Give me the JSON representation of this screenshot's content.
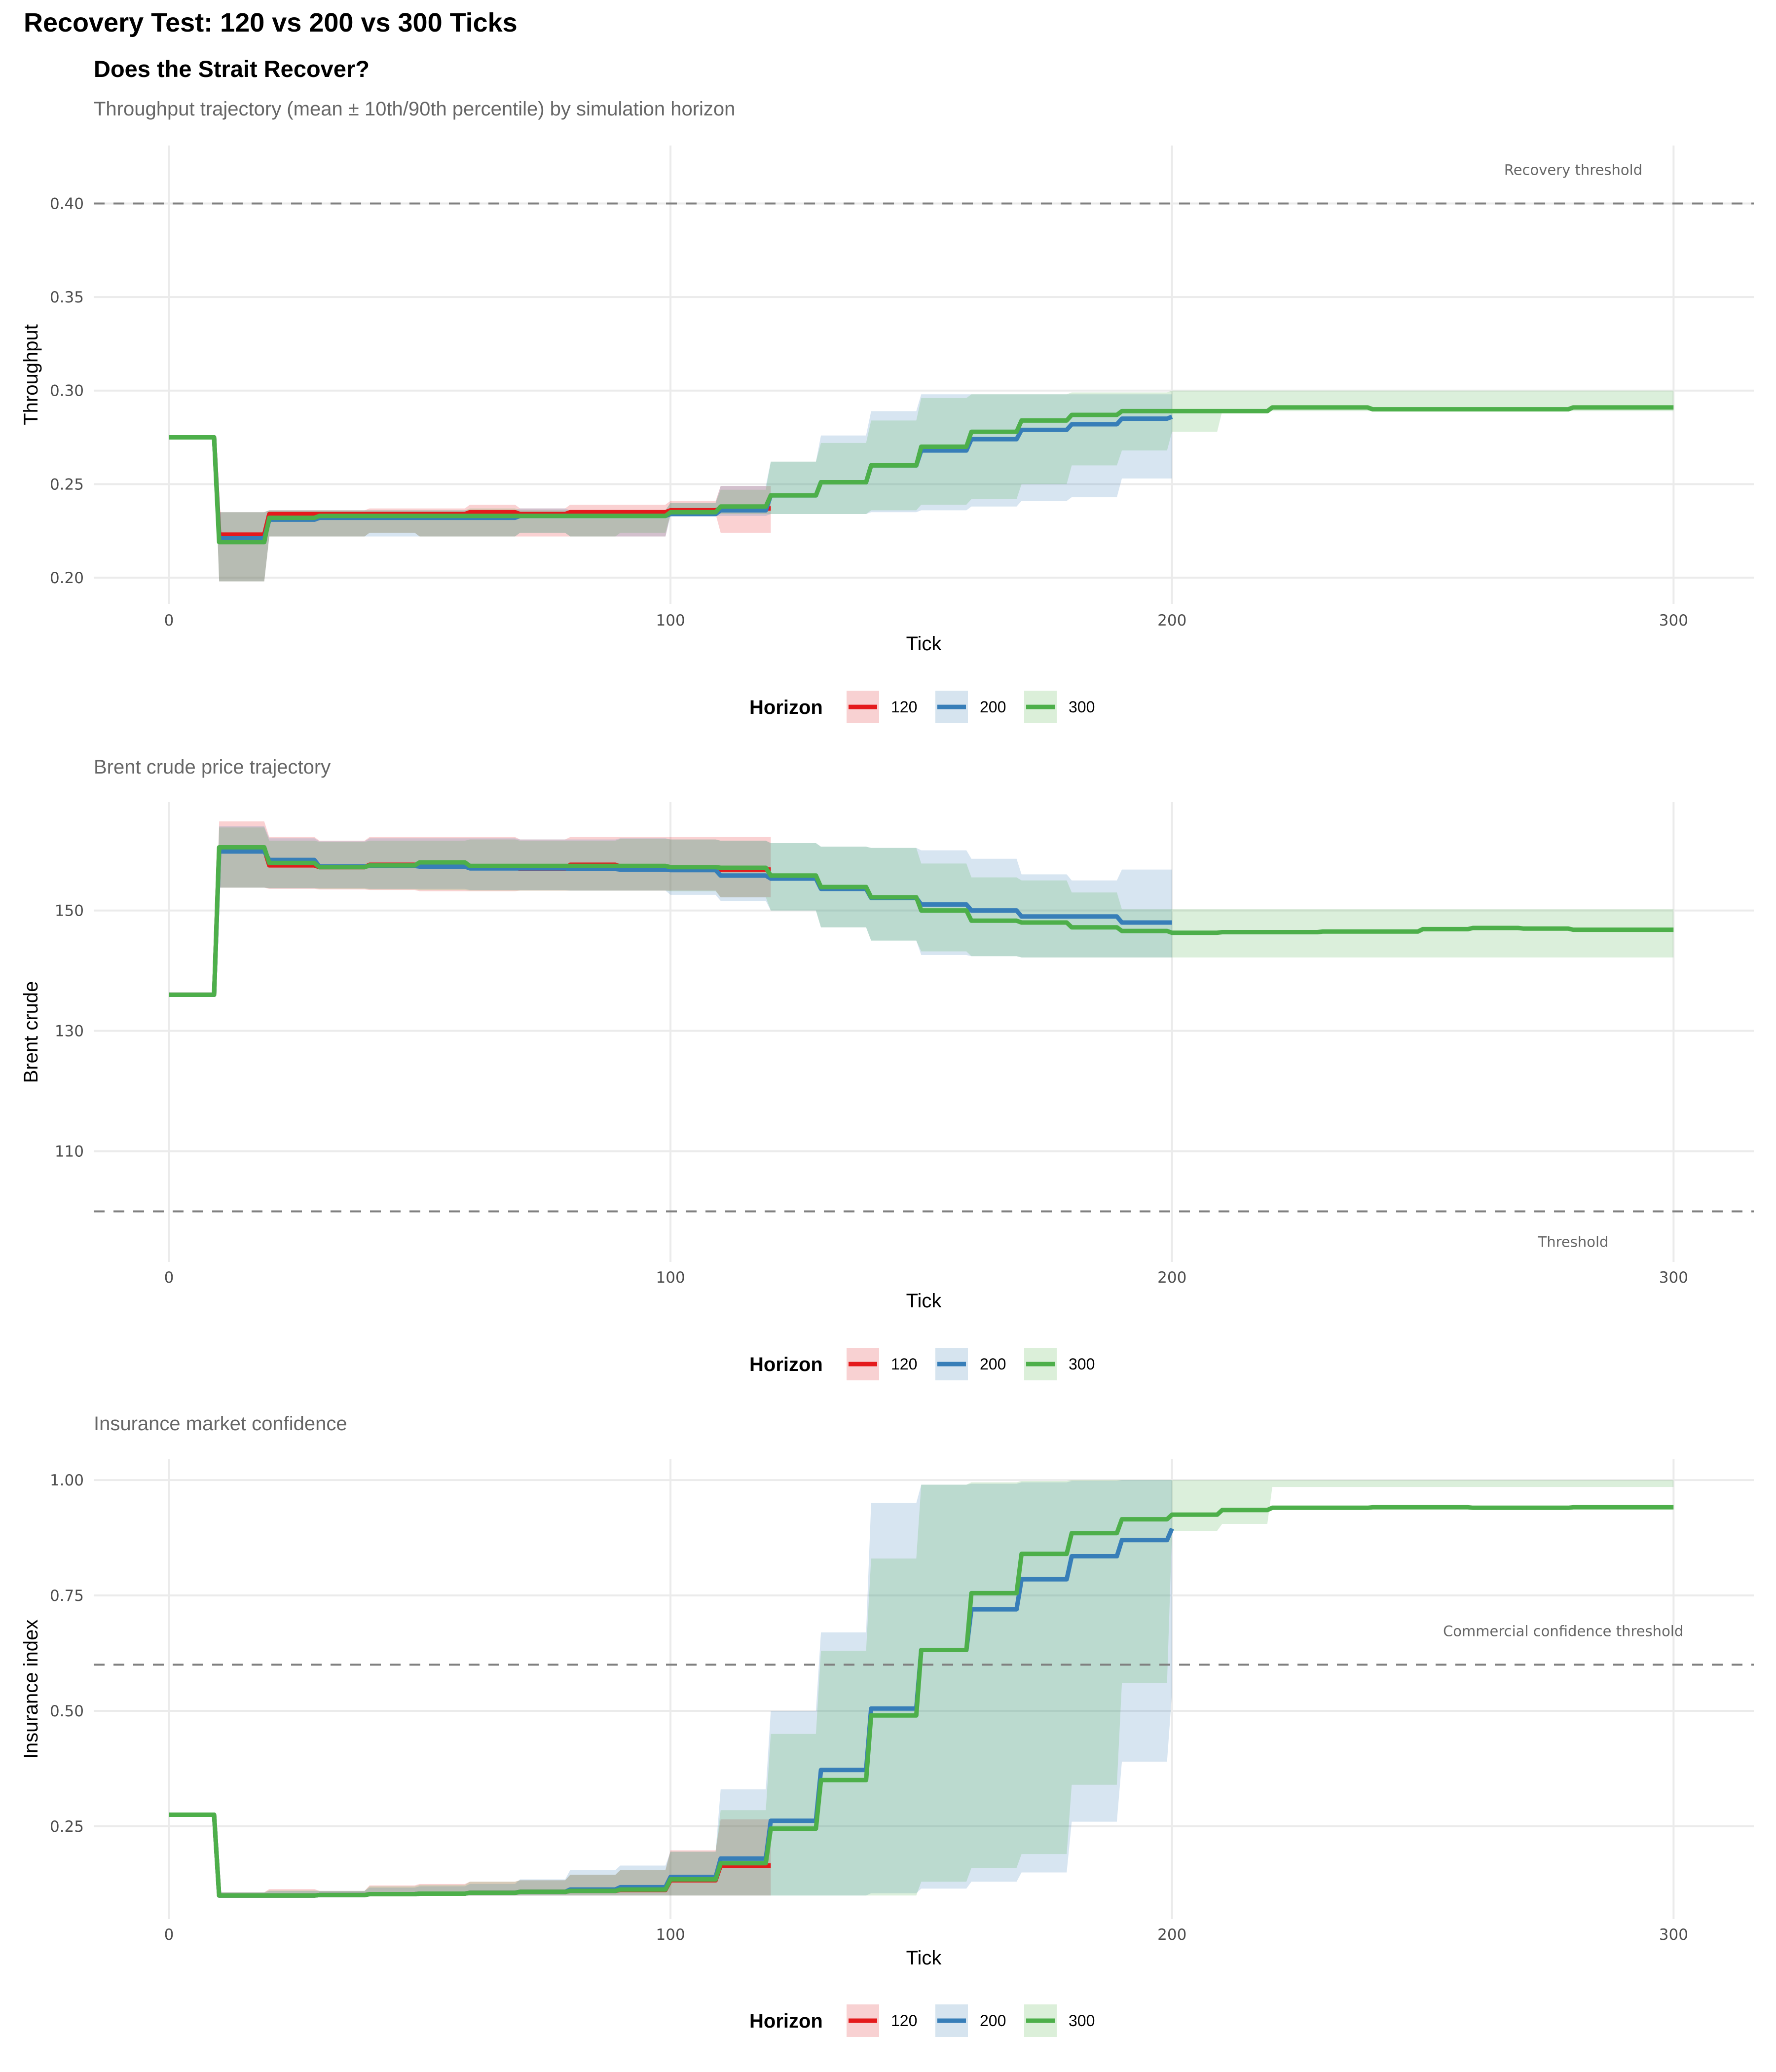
{
  "title": "Recovery Test: 120 vs 200 vs 300 Ticks",
  "subtitle": "Does the Strait Recover?",
  "caption": "Throughput trajectory (mean ± 10th/90th percentile) by simulation horizon",
  "legend": {
    "title": "Horizon",
    "entries": [
      {
        "label": "120",
        "color": "#E41A1C",
        "fill": "#F8D1D2"
      },
      {
        "label": "200",
        "color": "#377EB8",
        "fill": "#D6E4EF"
      },
      {
        "label": "300",
        "color": "#4DAF4A",
        "fill": "#DBEFD9"
      }
    ]
  },
  "chart_data": [
    {
      "type": "line",
      "panel_title": "",
      "xlabel": "Tick",
      "ylabel": "Throughput",
      "xlim": [
        -15,
        316
      ],
      "ylim": [
        0.186,
        0.431
      ],
      "x_ticks": [
        0,
        100,
        200,
        300
      ],
      "x_tick_labels": [
        "0",
        "100",
        "200",
        "300"
      ],
      "y_ticks": [
        0.2,
        0.25,
        0.3,
        0.35,
        0.4
      ],
      "y_tick_labels": [
        "0.20",
        "0.25",
        "0.30",
        "0.35",
        "0.40"
      ],
      "grid": true,
      "legend_position": "bottom",
      "reference_line": {
        "y": 0.4,
        "label": "Recovery threshold",
        "label_x": 280,
        "label_position": "above"
      },
      "step_x": [
        0,
        10,
        20,
        30,
        40,
        50,
        60,
        70,
        80,
        90,
        100,
        110,
        120,
        130,
        140,
        150,
        160,
        170,
        180,
        190,
        200,
        210,
        220,
        230,
        240,
        250,
        260,
        270,
        280,
        290,
        300
      ],
      "series": [
        {
          "name": "120",
          "mean": [
            0.275,
            0.223,
            0.234,
            0.234,
            0.234,
            0.234,
            0.235,
            0.234,
            0.235,
            0.235,
            0.236,
            0.237,
            0.237
          ],
          "lower": [
            0.275,
            0.198,
            0.222,
            0.222,
            0.224,
            0.222,
            0.222,
            0.222,
            0.222,
            0.222,
            0.234,
            0.224,
            0.224
          ],
          "upper": [
            0.275,
            0.235,
            0.236,
            0.236,
            0.237,
            0.237,
            0.239,
            0.237,
            0.239,
            0.239,
            0.241,
            0.249,
            0.249
          ]
        },
        {
          "name": "200",
          "mean": [
            0.275,
            0.221,
            0.231,
            0.232,
            0.232,
            0.232,
            0.232,
            0.233,
            0.233,
            0.233,
            0.234,
            0.236,
            0.244,
            0.251,
            0.26,
            0.268,
            0.274,
            0.279,
            0.282,
            0.285,
            0.286
          ],
          "lower": [
            0.275,
            0.198,
            0.222,
            0.222,
            0.222,
            0.222,
            0.222,
            0.224,
            0.222,
            0.222,
            0.233,
            0.233,
            0.234,
            0.234,
            0.235,
            0.236,
            0.238,
            0.241,
            0.243,
            0.253,
            0.253
          ],
          "upper": [
            0.275,
            0.235,
            0.236,
            0.236,
            0.236,
            0.236,
            0.236,
            0.237,
            0.236,
            0.236,
            0.24,
            0.249,
            0.262,
            0.276,
            0.289,
            0.298,
            0.298,
            0.298,
            0.298,
            0.298,
            0.298
          ]
        },
        {
          "name": "300",
          "mean": [
            0.275,
            0.219,
            0.232,
            0.233,
            0.233,
            0.233,
            0.233,
            0.233,
            0.233,
            0.233,
            0.235,
            0.238,
            0.244,
            0.251,
            0.26,
            0.27,
            0.278,
            0.284,
            0.287,
            0.289,
            0.289,
            0.289,
            0.291,
            0.291,
            0.29,
            0.29,
            0.29,
            0.29,
            0.291,
            0.291,
            0.291
          ],
          "lower": [
            0.275,
            0.198,
            0.222,
            0.222,
            0.224,
            0.222,
            0.222,
            0.224,
            0.222,
            0.224,
            0.234,
            0.234,
            0.234,
            0.234,
            0.236,
            0.239,
            0.242,
            0.25,
            0.26,
            0.268,
            0.278,
            0.289,
            0.289,
            0.289,
            0.289,
            0.289,
            0.289,
            0.289,
            0.289,
            0.289,
            0.289
          ],
          "upper": [
            0.275,
            0.235,
            0.236,
            0.236,
            0.236,
            0.236,
            0.237,
            0.236,
            0.236,
            0.236,
            0.24,
            0.247,
            0.262,
            0.272,
            0.284,
            0.296,
            0.298,
            0.298,
            0.299,
            0.299,
            0.3,
            0.3,
            0.3,
            0.3,
            0.3,
            0.3,
            0.3,
            0.3,
            0.3,
            0.3,
            0.3
          ]
        }
      ]
    },
    {
      "type": "line",
      "panel_title": "Brent crude price trajectory",
      "xlabel": "Tick",
      "ylabel": "Brent crude",
      "xlim": [
        -15,
        316
      ],
      "ylim": [
        91.6,
        168.0
      ],
      "x_ticks": [
        0,
        100,
        200,
        300
      ],
      "x_tick_labels": [
        "0",
        "100",
        "200",
        "300"
      ],
      "y_ticks": [
        110,
        130,
        150
      ],
      "y_tick_labels": [
        "110",
        "130",
        "150"
      ],
      "grid": true,
      "legend_position": "bottom",
      "reference_line": {
        "y": 100,
        "label": "Threshold",
        "label_x": 280,
        "label_position": "below"
      },
      "step_x": [
        0,
        10,
        20,
        30,
        40,
        50,
        60,
        70,
        80,
        90,
        100,
        110,
        120,
        130,
        140,
        150,
        160,
        170,
        180,
        190,
        200,
        210,
        220,
        230,
        240,
        250,
        260,
        270,
        280,
        290,
        300
      ],
      "series": [
        {
          "name": "120",
          "mean": [
            136,
            160.2,
            157.5,
            157.2,
            157.6,
            157.4,
            157.3,
            156.9,
            157.6,
            157.3,
            157.0,
            156.8,
            156.8
          ],
          "lower": [
            136,
            153.8,
            153.6,
            153.5,
            153.4,
            153.2,
            153.2,
            153.3,
            153.3,
            153.3,
            153.3,
            152.2,
            152.2
          ],
          "upper": [
            136,
            164.8,
            162.2,
            161.6,
            162.2,
            162.2,
            162.2,
            161.8,
            162.2,
            162.2,
            162.2,
            162.2,
            162.2
          ]
        },
        {
          "name": "200",
          "mean": [
            136,
            159.8,
            158.4,
            157.3,
            157.4,
            157.3,
            157.0,
            157.0,
            156.9,
            156.8,
            156.7,
            155.8,
            155.3,
            153.6,
            152.1,
            151.0,
            150.0,
            149.0,
            149.0,
            148.0,
            148.0
          ],
          "lower": [
            136,
            153.8,
            153.7,
            153.7,
            153.6,
            153.6,
            153.4,
            153.4,
            153.3,
            153.3,
            152.6,
            151.6,
            150.0,
            147.2,
            145.0,
            142.6,
            142.4,
            142.2,
            142.2,
            142.2,
            142.2
          ],
          "upper": [
            136,
            164.0,
            162.0,
            161.5,
            162.0,
            162.0,
            162.0,
            161.8,
            161.8,
            162.0,
            161.8,
            161.6,
            161.2,
            160.6,
            160.4,
            160.0,
            158.6,
            156.0,
            155.0,
            156.8,
            156.8
          ]
        },
        {
          "name": "300",
          "mean": [
            136,
            160.5,
            157.9,
            157.2,
            157.5,
            158.0,
            157.4,
            157.4,
            157.4,
            157.4,
            157.2,
            157.1,
            155.8,
            153.9,
            152.2,
            150.0,
            148.3,
            148.0,
            147.2,
            146.6,
            146.3,
            146.4,
            146.4,
            146.5,
            146.5,
            146.9,
            147.1,
            147.0,
            146.8,
            146.8,
            146.8
          ],
          "lower": [
            136,
            153.8,
            153.7,
            153.6,
            153.5,
            153.4,
            153.3,
            153.3,
            153.3,
            153.3,
            153.2,
            152.2,
            150.0,
            147.2,
            145.0,
            143.2,
            142.4,
            142.2,
            142.2,
            142.2,
            142.2,
            142.2,
            142.2,
            142.2,
            142.2,
            142.2,
            142.2,
            142.2,
            142.2,
            142.2,
            142.2
          ],
          "upper": [
            136,
            163.8,
            161.6,
            161.4,
            161.6,
            161.6,
            161.8,
            161.6,
            161.6,
            161.9,
            161.8,
            161.6,
            161.2,
            160.6,
            160.4,
            157.8,
            155.5,
            155.0,
            153.0,
            150.2,
            150.2,
            150.2,
            150.2,
            150.2,
            150.2,
            150.2,
            150.2,
            150.2,
            150.2,
            150.2,
            150.2
          ]
        }
      ]
    },
    {
      "type": "line",
      "panel_title": "Insurance market confidence",
      "xlabel": "Tick",
      "ylabel": "Insurance index",
      "xlim": [
        -15,
        316
      ],
      "ylim": [
        0.049,
        1.045
      ],
      "x_ticks": [
        0,
        100,
        200,
        300
      ],
      "x_tick_labels": [
        "0",
        "100",
        "200",
        "300"
      ],
      "y_ticks": [
        0.25,
        0.5,
        0.75,
        1.0
      ],
      "y_tick_labels": [
        "0.25",
        "0.50",
        "0.75",
        "1.00"
      ],
      "grid": true,
      "legend_position": "bottom",
      "reference_line": {
        "y": 0.6,
        "label": "Commercial confidence threshold",
        "label_x": 278,
        "label_position": "above"
      },
      "step_x": [
        0,
        10,
        20,
        30,
        40,
        50,
        60,
        70,
        80,
        90,
        100,
        110,
        120,
        130,
        140,
        150,
        160,
        170,
        180,
        190,
        200,
        210,
        220,
        230,
        240,
        250,
        260,
        270,
        280,
        290,
        300
      ],
      "series": [
        {
          "name": "120",
          "mean": [
            0.275,
            0.1,
            0.1,
            0.101,
            0.103,
            0.104,
            0.106,
            0.108,
            0.11,
            0.112,
            0.133,
            0.165,
            0.165
          ],
          "lower": [
            0.275,
            0.1,
            0.1,
            0.1,
            0.1,
            0.1,
            0.1,
            0.1,
            0.1,
            0.1,
            0.1,
            0.1,
            0.1
          ],
          "upper": [
            0.275,
            0.107,
            0.114,
            0.11,
            0.122,
            0.125,
            0.13,
            0.133,
            0.145,
            0.155,
            0.198,
            0.265,
            0.265
          ]
        },
        {
          "name": "200",
          "mean": [
            0.275,
            0.1,
            0.1,
            0.101,
            0.103,
            0.104,
            0.106,
            0.108,
            0.113,
            0.118,
            0.14,
            0.18,
            0.262,
            0.372,
            0.505,
            0.632,
            0.72,
            0.785,
            0.835,
            0.87,
            0.895
          ],
          "lower": [
            0.275,
            0.1,
            0.1,
            0.1,
            0.1,
            0.1,
            0.1,
            0.1,
            0.1,
            0.1,
            0.1,
            0.1,
            0.1,
            0.1,
            0.105,
            0.115,
            0.13,
            0.15,
            0.26,
            0.39,
            0.54
          ],
          "upper": [
            0.275,
            0.107,
            0.11,
            0.11,
            0.117,
            0.12,
            0.125,
            0.135,
            0.155,
            0.165,
            0.195,
            0.33,
            0.5,
            0.67,
            0.95,
            0.99,
            0.992,
            0.995,
            0.998,
            1.0,
            1.0
          ]
        },
        {
          "name": "300",
          "mean": [
            0.275,
            0.1,
            0.1,
            0.101,
            0.103,
            0.104,
            0.106,
            0.108,
            0.11,
            0.113,
            0.135,
            0.17,
            0.245,
            0.35,
            0.49,
            0.632,
            0.755,
            0.84,
            0.885,
            0.915,
            0.925,
            0.935,
            0.94,
            0.94,
            0.941,
            0.941,
            0.94,
            0.94,
            0.941,
            0.941,
            0.941
          ],
          "lower": [
            0.275,
            0.1,
            0.1,
            0.1,
            0.1,
            0.1,
            0.1,
            0.1,
            0.1,
            0.1,
            0.1,
            0.1,
            0.1,
            0.1,
            0.1,
            0.13,
            0.16,
            0.19,
            0.34,
            0.56,
            0.89,
            0.905,
            0.985,
            0.985,
            0.985,
            0.985,
            0.985,
            0.985,
            0.985,
            0.985,
            0.985
          ],
          "upper": [
            0.275,
            0.107,
            0.111,
            0.11,
            0.12,
            0.123,
            0.13,
            0.133,
            0.145,
            0.155,
            0.195,
            0.285,
            0.45,
            0.63,
            0.83,
            0.99,
            0.995,
            0.998,
            1.0,
            1.0,
            1.0,
            1.0,
            1.0,
            1.0,
            1.0,
            1.0,
            1.0,
            1.0,
            1.0,
            1.0,
            1.0
          ]
        }
      ]
    }
  ]
}
